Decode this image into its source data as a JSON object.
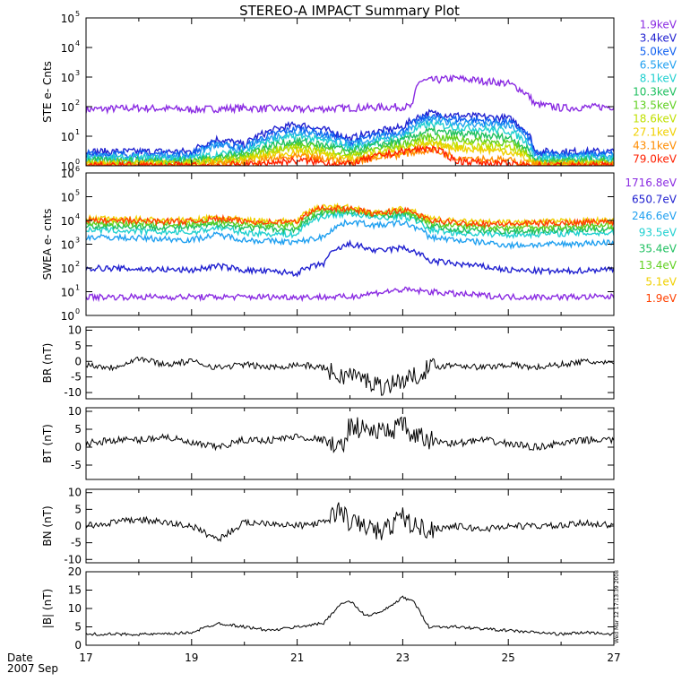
{
  "title": "STEREO-A IMPACT Summary Plot",
  "footer": {
    "date_label": "Date",
    "date_value": "2007 Sep"
  },
  "side_stamp": "Wed Mar 12 17:13:39 2008",
  "x_ticks": [
    "17",
    "19",
    "21",
    "23",
    "25",
    "27"
  ],
  "chart_data": [
    {
      "type": "line",
      "ylabel": "STE e- Cnts",
      "yscale": "log",
      "ylim": [
        1,
        100000
      ],
      "yticks": [
        [
          "10",
          "0"
        ],
        [
          "10",
          "1"
        ],
        [
          "10",
          "2"
        ],
        [
          "10",
          "3"
        ],
        [
          "10",
          "4"
        ],
        [
          "10",
          "5"
        ]
      ],
      "xlim": [
        17,
        27
      ],
      "series": [
        {
          "name": "1.9keV",
          "color": "#8a2be2",
          "x": [
            17,
            18,
            19,
            20,
            21,
            22,
            23.2,
            23.3,
            24,
            25,
            25.5,
            26,
            27
          ],
          "values": [
            80,
            90,
            80,
            90,
            80,
            90,
            100,
            700,
            900,
            600,
            120,
            90,
            100
          ]
        },
        {
          "name": "3.4keV",
          "color": "#2020d0",
          "x": [
            17,
            19,
            19.5,
            20,
            21,
            22,
            23,
            23.5,
            24,
            25,
            25.5,
            26,
            27
          ],
          "values": [
            3,
            3,
            8,
            5,
            25,
            8,
            20,
            60,
            50,
            40,
            3,
            3,
            3
          ]
        },
        {
          "name": "5.0keV",
          "color": "#1060f0",
          "x": [
            17,
            19,
            19.5,
            20,
            21,
            22,
            23,
            23.5,
            24,
            25,
            25.5,
            26,
            27
          ],
          "values": [
            2.5,
            2.5,
            6,
            4,
            18,
            6,
            15,
            45,
            38,
            30,
            2.5,
            2.5,
            2.5
          ]
        },
        {
          "name": "6.5keV",
          "color": "#20a0f0",
          "x": [
            17,
            19,
            19.5,
            20,
            21,
            22,
            23,
            23.5,
            24,
            25,
            25.5,
            26,
            27
          ],
          "values": [
            2,
            2,
            5,
            3.5,
            14,
            5,
            12,
            35,
            28,
            22,
            2,
            2,
            2
          ]
        },
        {
          "name": "8.1keV",
          "color": "#20d0d0",
          "x": [
            17,
            19,
            20,
            21,
            22,
            23,
            23.5,
            24,
            25,
            25.5,
            26,
            27
          ],
          "values": [
            1.8,
            1.8,
            3,
            10,
            4,
            9,
            25,
            20,
            15,
            1.8,
            1.8,
            1.8
          ]
        },
        {
          "name": "10.3keV",
          "color": "#20c060",
          "x": [
            17,
            19,
            20,
            21,
            22,
            23,
            23.5,
            24,
            25,
            25.5,
            26,
            27
          ],
          "values": [
            1.5,
            1.5,
            2.5,
            7,
            3,
            7,
            15,
            12,
            9,
            1.5,
            1.5,
            1.5
          ]
        },
        {
          "name": "13.5keV",
          "color": "#60d020",
          "x": [
            17,
            19,
            20,
            21,
            22,
            23,
            23.5,
            24,
            25,
            25.5,
            26,
            27
          ],
          "values": [
            1.3,
            1.3,
            2,
            5,
            2.5,
            5,
            10,
            8,
            6,
            1.3,
            1.3,
            1.3
          ]
        },
        {
          "name": "18.6keV",
          "color": "#c0e000",
          "x": [
            17,
            19,
            20,
            21,
            22,
            23,
            23.5,
            24,
            25,
            25.5,
            26,
            27
          ],
          "values": [
            1.2,
            1.2,
            1.8,
            4,
            2,
            4,
            7,
            5,
            4,
            1.2,
            1.2,
            1.2
          ]
        },
        {
          "name": "27.1keV",
          "color": "#f0d000",
          "x": [
            17,
            19,
            20,
            21,
            22,
            23,
            23.5,
            24,
            25,
            25.5,
            26,
            27
          ],
          "values": [
            1.1,
            1.1,
            1.5,
            3,
            1.6,
            3,
            5,
            4,
            3,
            1.1,
            1.1,
            1.1
          ]
        },
        {
          "name": "43.1keV",
          "color": "#ff8c00",
          "x": [
            17,
            19,
            20,
            21,
            22,
            23,
            23.5,
            24,
            25,
            25.5,
            26,
            27
          ],
          "values": [
            1.05,
            1.05,
            1.2,
            2,
            1.3,
            2.5,
            3.5,
            2,
            1.5,
            1.05,
            1.05,
            1.05
          ]
        },
        {
          "name": "79.0keV",
          "color": "#ff2000",
          "x": [
            17,
            19,
            20,
            21,
            22,
            23,
            23.5,
            24,
            25,
            25.5,
            26,
            27
          ],
          "values": [
            1,
            1,
            1.05,
            1.5,
            1.1,
            3,
            4,
            1.5,
            1.1,
            1,
            1,
            1
          ]
        }
      ]
    },
    {
      "type": "line",
      "ylabel": "SWEA e- cnts",
      "yscale": "log",
      "ylim": [
        1,
        1000000
      ],
      "yticks": [
        [
          "10",
          "0"
        ],
        [
          "10",
          "1"
        ],
        [
          "10",
          "2"
        ],
        [
          "10",
          "3"
        ],
        [
          "10",
          "4"
        ],
        [
          "10",
          "5"
        ],
        [
          "10",
          "6"
        ]
      ],
      "xlim": [
        17,
        27
      ],
      "series": [
        {
          "name": "1716.8eV",
          "color": "#8a2be2",
          "x": [
            17,
            19,
            21,
            22,
            23,
            24,
            25,
            26,
            27
          ],
          "values": [
            6,
            6,
            6,
            6,
            12,
            8,
            6,
            6,
            6
          ]
        },
        {
          "name": "650.7eV",
          "color": "#2020d0",
          "x": [
            17,
            18,
            19,
            19.5,
            20,
            21,
            21.5,
            22,
            22.5,
            23,
            23.5,
            24,
            25,
            26,
            27
          ],
          "values": [
            100,
            90,
            80,
            120,
            80,
            60,
            150,
            1000,
            500,
            700,
            200,
            150,
            80,
            70,
            90
          ]
        },
        {
          "name": "246.6eV",
          "color": "#20a0f0",
          "x": [
            17,
            18,
            19,
            19.5,
            20,
            21,
            21.5,
            22,
            22.5,
            23,
            23.5,
            24,
            25,
            26,
            27
          ],
          "values": [
            2000,
            1800,
            1500,
            2500,
            1500,
            1200,
            2000,
            9000,
            6000,
            8000,
            2000,
            1500,
            900,
            1000,
            1200
          ]
        },
        {
          "name": "93.5eV",
          "color": "#20d0d0",
          "x": [
            17,
            18,
            19,
            19.5,
            20,
            21,
            21.5,
            22,
            22.5,
            23,
            23.5,
            24,
            25,
            26,
            27
          ],
          "values": [
            4000,
            3500,
            3000,
            5000,
            3000,
            2500,
            15000,
            20000,
            12000,
            15000,
            4000,
            3000,
            2500,
            2800,
            3000
          ]
        },
        {
          "name": "35.4eV",
          "color": "#20c060",
          "x": [
            17,
            18,
            19,
            19.5,
            20,
            21,
            21.5,
            22,
            22.5,
            23,
            23.5,
            24,
            25,
            26,
            27
          ],
          "values": [
            6000,
            5500,
            5000,
            7000,
            5000,
            4000,
            20000,
            25000,
            15000,
            20000,
            6000,
            4000,
            3500,
            4000,
            4500
          ]
        },
        {
          "name": "13.4eV",
          "color": "#60d020",
          "x": [
            17,
            18,
            19,
            19.5,
            20,
            21,
            21.5,
            22,
            22.5,
            23,
            23.5,
            24,
            25,
            26,
            27
          ],
          "values": [
            8000,
            7500,
            7000,
            9000,
            7000,
            6000,
            25000,
            30000,
            18000,
            25000,
            8000,
            6000,
            5000,
            5500,
            6000
          ]
        },
        {
          "name": "5.1eV",
          "color": "#f0d000",
          "x": [
            17,
            18,
            19,
            19.5,
            20,
            21,
            21.5,
            22,
            22.5,
            23,
            23.5,
            24,
            25,
            26,
            27
          ],
          "values": [
            12000,
            11000,
            10000,
            14000,
            10000,
            9000,
            40000,
            35000,
            20000,
            30000,
            12000,
            9000,
            8000,
            9000,
            10000
          ]
        },
        {
          "name": "1.9eV",
          "color": "#ff4000",
          "x": [
            17,
            18,
            19,
            19.5,
            20,
            21,
            21.5,
            22,
            22.5,
            23,
            23.5,
            24,
            25,
            26,
            27
          ],
          "values": [
            10000,
            9500,
            9000,
            12000,
            9000,
            8500,
            35000,
            30000,
            18000,
            28000,
            10000,
            8000,
            7000,
            8000,
            9000
          ]
        }
      ]
    },
    {
      "type": "line",
      "ylabel": "BR (nT)",
      "yscale": "linear",
      "ylim": [
        -12,
        11
      ],
      "yticks": [
        "-10",
        "-5",
        "0",
        "5",
        "10"
      ],
      "xlim": [
        17,
        27
      ],
      "series": [
        {
          "x": [
            17,
            17.5,
            18,
            18.5,
            19,
            19.5,
            20,
            20.5,
            21,
            21.5,
            21.8,
            22,
            22.3,
            22.6,
            23,
            23.2,
            23.5,
            24,
            24.5,
            25,
            25.5,
            26,
            26.5,
            27
          ],
          "values": [
            -1,
            -2,
            1,
            -1,
            0,
            -2,
            -1,
            -2,
            -1,
            -2,
            -5,
            -4,
            -6,
            -8,
            -6,
            -5,
            -2,
            -1,
            -2,
            -1,
            -2,
            -1,
            0,
            -1
          ]
        }
      ]
    },
    {
      "type": "line",
      "ylabel": "BT (nT)",
      "yscale": "linear",
      "ylim": [
        -9,
        11
      ],
      "yticks": [
        "-5",
        "0",
        "5",
        "10"
      ],
      "xlim": [
        17,
        27
      ],
      "series": [
        {
          "x": [
            17,
            17.5,
            18,
            18.5,
            19,
            19.5,
            20,
            20.5,
            21,
            21.5,
            21.8,
            22,
            22.3,
            22.6,
            23,
            23.2,
            23.5,
            24,
            24.5,
            25,
            25.5,
            26,
            26.5,
            27
          ],
          "values": [
            1,
            2,
            2,
            3,
            1,
            0,
            2,
            2,
            3,
            2,
            -1,
            6,
            5,
            4,
            6,
            3,
            2,
            1,
            2,
            1,
            0,
            1,
            2,
            2
          ]
        }
      ]
    },
    {
      "type": "line",
      "ylabel": "BN (nT)",
      "yscale": "linear",
      "ylim": [
        -11,
        11
      ],
      "yticks": [
        "-10",
        "-5",
        "0",
        "5",
        "10"
      ],
      "xlim": [
        17,
        27
      ],
      "series": [
        {
          "x": [
            17,
            17.5,
            18,
            18.5,
            19,
            19.5,
            20,
            20.5,
            21,
            21.5,
            21.8,
            22,
            22.3,
            22.6,
            23,
            23.2,
            23.5,
            24,
            24.5,
            25,
            25.5,
            26,
            26.5,
            27
          ],
          "values": [
            0,
            1,
            2,
            1,
            0,
            -4,
            1,
            1,
            0,
            1,
            5,
            1,
            0,
            -2,
            3,
            0,
            -1,
            0,
            -1,
            0,
            0,
            0,
            1,
            0
          ]
        }
      ]
    },
    {
      "type": "line",
      "ylabel": "|B| (nT)",
      "yscale": "linear",
      "ylim": [
        0,
        20
      ],
      "yticks": [
        "0",
        "5",
        "10",
        "15",
        "20"
      ],
      "xlim": [
        17,
        27
      ],
      "series": [
        {
          "x": [
            17,
            17.5,
            18,
            18.5,
            19,
            19.5,
            20,
            20.5,
            21,
            21.5,
            21.8,
            22,
            22.3,
            22.6,
            23,
            23.2,
            23.5,
            24,
            24.5,
            25,
            25.5,
            26,
            26.5,
            27
          ],
          "values": [
            3,
            3,
            3,
            3,
            3.5,
            6,
            5,
            4,
            5,
            6,
            11,
            12,
            8,
            9,
            13,
            12,
            5,
            5,
            4.5,
            4,
            3.5,
            3,
            3.5,
            3
          ]
        }
      ]
    }
  ]
}
